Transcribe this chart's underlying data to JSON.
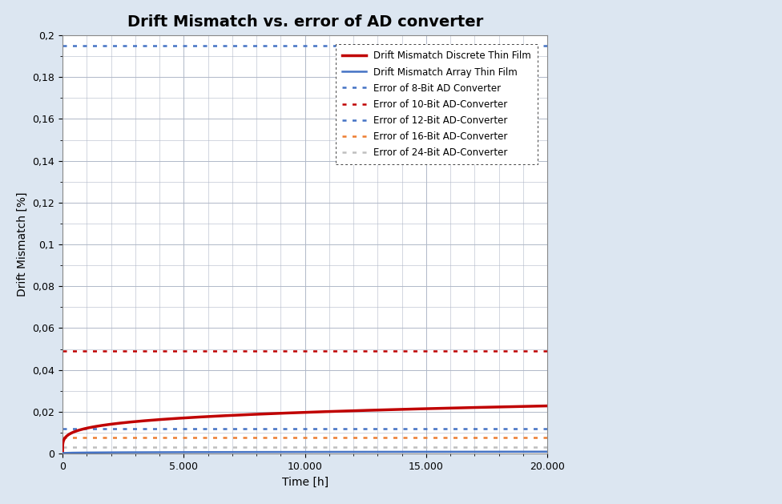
{
  "title": "Drift Mismatch vs. error of AD converter",
  "xlabel": "Time [h]",
  "ylabel": "Drift Mismatch [%]",
  "xlim": [
    0,
    20000
  ],
  "ylim": [
    0,
    0.2
  ],
  "yticks": [
    0,
    0.02,
    0.04,
    0.06,
    0.08,
    0.1,
    0.12,
    0.14,
    0.16,
    0.18,
    0.2
  ],
  "ytick_labels": [
    "0",
    "0,02",
    "0,04",
    "0,06",
    "0,08",
    "0,1",
    "0,12",
    "0,14",
    "0,16",
    "0,18",
    "0,2"
  ],
  "xticks": [
    0,
    5000,
    10000,
    15000,
    20000
  ],
  "xtick_labels": [
    "0",
    "5.000",
    "10.000",
    "15.000",
    "20.000"
  ],
  "discrete_thin_film_color": "#c00000",
  "discrete_thin_film_linewidth": 2.5,
  "array_thin_film_color": "#4472c4",
  "array_thin_film_linewidth": 1.8,
  "discrete_drift_coeff": 0.00285,
  "discrete_drift_exponent": 0.21,
  "array_drift_coeff": 0.000115,
  "array_drift_exponent": 0.21,
  "horizontal_lines": [
    {
      "value": 0.195,
      "color": "#4472c4",
      "linestyle": "dotted",
      "linewidth": 1.8,
      "label": "Error of 8-Bit AD Converter"
    },
    {
      "value": 0.049,
      "color": "#c00000",
      "linestyle": "dotted",
      "linewidth": 1.8,
      "label": "Error of 10-Bit AD-Converter"
    },
    {
      "value": 0.012,
      "color": "#4472c4",
      "linestyle": "dotted",
      "linewidth": 1.8,
      "label": "Error of 12-Bit AD-Converter"
    },
    {
      "value": 0.0078,
      "color": "#ed7d31",
      "linestyle": "dotted",
      "linewidth": 1.8,
      "label": "Error of 16-Bit AD-Converter"
    },
    {
      "value": 0.003,
      "color": "#bfbfbf",
      "linestyle": "dotted",
      "linewidth": 1.8,
      "label": "Error of 24-Bit AD-Converter"
    }
  ],
  "legend_labels": [
    "Drift Mismatch Discrete Thin Film",
    "Drift Mismatch Array Thin Film",
    "Error of 8-Bit AD Converter",
    "Error of 10-Bit AD-Converter",
    "Error of 12-Bit AD-Converter",
    "Error of 16-Bit AD-Converter",
    "Error of 24-Bit AD-Converter"
  ],
  "background_color": "#dce6f1",
  "plot_bg_color": "#ffffff",
  "grid_color": "#b0b8c8",
  "title_fontsize": 14,
  "axis_label_fontsize": 10,
  "tick_fontsize": 9,
  "legend_fontsize": 8.5
}
